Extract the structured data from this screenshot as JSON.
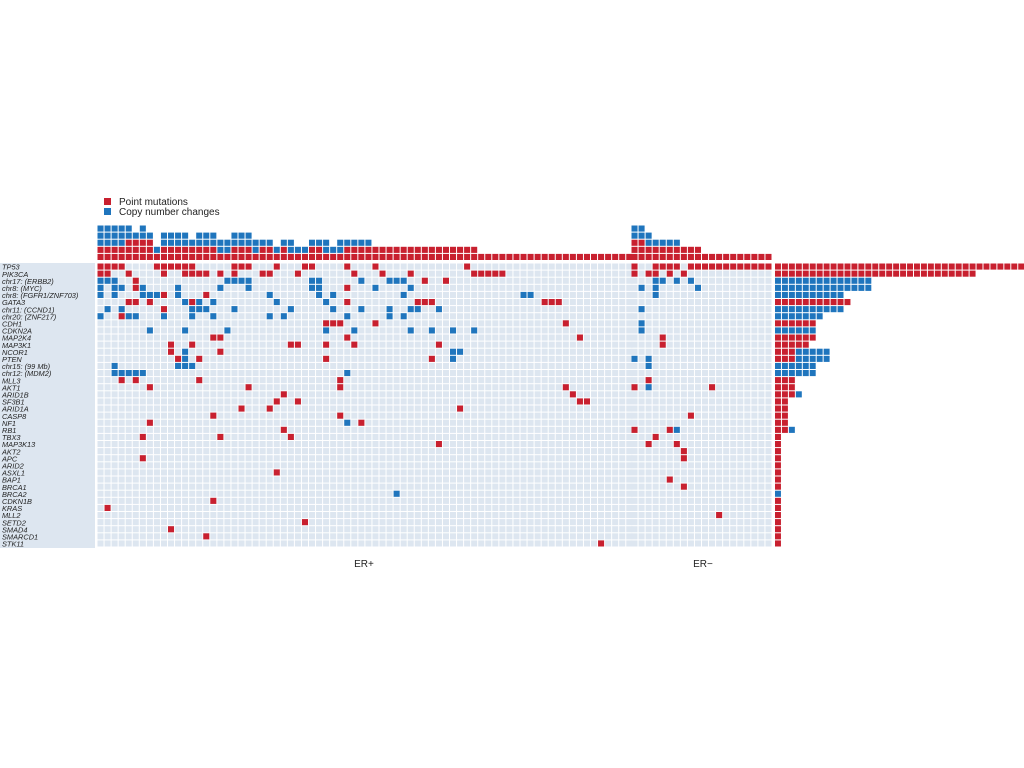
{
  "legend": {
    "items": [
      {
        "label": "Point mutations",
        "color": "#c8202f"
      },
      {
        "label": "Copy number changes",
        "color": "#1f75bd"
      }
    ]
  },
  "colors": {
    "background_cell": "#dde6f0",
    "grid_line": "#ffffff",
    "row_label_band": "#dde6f0",
    "mutation": "#c8202f",
    "copy_number": "#1f75bd",
    "text": "#222222"
  },
  "chart_data": {
    "type": "heatmap",
    "groups": [
      {
        "label": "ER+",
        "n_samples": 76
      },
      {
        "label": "ER−",
        "n_samples": 20
      }
    ],
    "genes": [
      "TP53",
      "PIK3CA",
      "chr17: (ERBB2)",
      "chr8: (MYC)",
      "chr8: (FGFR1/ZNF703)",
      "GATA3",
      "chr11: (CCND1)",
      "chr20: (ZNF217)",
      "CDH1",
      "CDKN2A",
      "MAP2K4",
      "MAP3K1",
      "NCOR1",
      "PTEN",
      "chr15: (99 Mb)",
      "chr12: (MDM2)",
      "MLL3",
      "AKT1",
      "ARID1B",
      "SF3B1",
      "ARID1A",
      "CASP8",
      "NF1",
      "RB1",
      "TBX3",
      "MAP3K13",
      "AKT2",
      "APC",
      "ARID2",
      "ASXL1",
      "BAP1",
      "BRCA1",
      "BRCA2",
      "CDKN1B",
      "KRAS",
      "MLL2",
      "SETD2",
      "SMAD4",
      "SMARCD1",
      "STK11"
    ],
    "gene_totals": {
      "mutations": [
        36,
        29,
        0,
        0,
        0,
        11,
        0,
        0,
        6,
        0,
        6,
        5,
        3,
        3,
        0,
        0,
        3,
        3,
        3,
        2,
        2,
        2,
        2,
        2,
        1,
        1,
        1,
        1,
        1,
        1,
        1,
        1,
        0,
        1,
        1,
        1,
        1,
        1,
        1,
        1
      ],
      "copy_number": [
        0,
        0,
        14,
        14,
        10,
        0,
        10,
        7,
        0,
        6,
        0,
        0,
        5,
        5,
        6,
        6,
        0,
        0,
        1,
        0,
        0,
        0,
        0,
        1,
        0,
        0,
        0,
        0,
        0,
        0,
        0,
        0,
        1,
        0,
        0,
        0,
        0,
        0,
        0,
        0
      ]
    },
    "erpos_events": [
      [
        0,
        "m",
        0
      ],
      [
        0,
        "m",
        1
      ],
      [
        0,
        "m",
        2
      ],
      [
        0,
        "m",
        3
      ],
      [
        0,
        "m",
        8
      ],
      [
        0,
        "m",
        9
      ],
      [
        0,
        "m",
        10
      ],
      [
        0,
        "m",
        11
      ],
      [
        0,
        "m",
        12
      ],
      [
        0,
        "m",
        13
      ],
      [
        0,
        "m",
        19
      ],
      [
        0,
        "m",
        20
      ],
      [
        0,
        "m",
        21
      ],
      [
        0,
        "m",
        25
      ],
      [
        0,
        "m",
        29
      ],
      [
        0,
        "m",
        30
      ],
      [
        0,
        "m",
        35
      ],
      [
        0,
        "m",
        39
      ],
      [
        0,
        "m",
        52
      ],
      [
        1,
        "m",
        0
      ],
      [
        1,
        "m",
        1
      ],
      [
        1,
        "m",
        4
      ],
      [
        1,
        "m",
        9
      ],
      [
        1,
        "m",
        12
      ],
      [
        1,
        "m",
        13
      ],
      [
        1,
        "m",
        14
      ],
      [
        1,
        "m",
        15
      ],
      [
        1,
        "m",
        17
      ],
      [
        1,
        "m",
        19
      ],
      [
        1,
        "m",
        23
      ],
      [
        1,
        "m",
        24
      ],
      [
        1,
        "m",
        28
      ],
      [
        1,
        "m",
        36
      ],
      [
        1,
        "m",
        40
      ],
      [
        1,
        "m",
        44
      ],
      [
        1,
        "m",
        53
      ],
      [
        1,
        "m",
        54
      ],
      [
        1,
        "m",
        55
      ],
      [
        1,
        "m",
        56
      ],
      [
        1,
        "m",
        57
      ],
      [
        2,
        "c",
        0
      ],
      [
        2,
        "c",
        1
      ],
      [
        2,
        "c",
        2
      ],
      [
        2,
        "m",
        5
      ],
      [
        2,
        "c",
        18
      ],
      [
        2,
        "c",
        19
      ],
      [
        2,
        "c",
        20
      ],
      [
        2,
        "c",
        21
      ],
      [
        2,
        "c",
        30
      ],
      [
        2,
        "c",
        31
      ],
      [
        2,
        "c",
        37
      ],
      [
        2,
        "c",
        41
      ],
      [
        2,
        "c",
        42
      ],
      [
        2,
        "c",
        43
      ],
      [
        2,
        "m",
        46
      ],
      [
        2,
        "m",
        49
      ],
      [
        3,
        "c",
        0
      ],
      [
        3,
        "c",
        2
      ],
      [
        3,
        "c",
        3
      ],
      [
        3,
        "m",
        5
      ],
      [
        3,
        "c",
        6
      ],
      [
        3,
        "c",
        11
      ],
      [
        3,
        "c",
        17
      ],
      [
        3,
        "c",
        21
      ],
      [
        3,
        "c",
        30
      ],
      [
        3,
        "c",
        31
      ],
      [
        3,
        "m",
        35
      ],
      [
        3,
        "c",
        39
      ],
      [
        3,
        "c",
        44
      ],
      [
        4,
        "c",
        0
      ],
      [
        4,
        "c",
        2
      ],
      [
        4,
        "c",
        6
      ],
      [
        4,
        "c",
        7
      ],
      [
        4,
        "c",
        8
      ],
      [
        4,
        "m",
        9
      ],
      [
        4,
        "c",
        11
      ],
      [
        4,
        "m",
        15
      ],
      [
        4,
        "c",
        24
      ],
      [
        4,
        "c",
        31
      ],
      [
        4,
        "c",
        33
      ],
      [
        4,
        "c",
        43
      ],
      [
        4,
        "c",
        60
      ],
      [
        4,
        "c",
        61
      ],
      [
        5,
        "m",
        4
      ],
      [
        5,
        "m",
        5
      ],
      [
        5,
        "m",
        7
      ],
      [
        5,
        "c",
        12
      ],
      [
        5,
        "m",
        13
      ],
      [
        5,
        "c",
        14
      ],
      [
        5,
        "c",
        16
      ],
      [
        5,
        "c",
        25
      ],
      [
        5,
        "c",
        32
      ],
      [
        5,
        "m",
        35
      ],
      [
        5,
        "m",
        45
      ],
      [
        5,
        "m",
        46
      ],
      [
        5,
        "m",
        47
      ],
      [
        5,
        "m",
        63
      ],
      [
        5,
        "m",
        64
      ],
      [
        5,
        "m",
        65
      ],
      [
        6,
        "c",
        1
      ],
      [
        6,
        "c",
        3
      ],
      [
        6,
        "m",
        9
      ],
      [
        6,
        "c",
        13
      ],
      [
        6,
        "c",
        14
      ],
      [
        6,
        "c",
        15
      ],
      [
        6,
        "c",
        19
      ],
      [
        6,
        "c",
        27
      ],
      [
        6,
        "c",
        33
      ],
      [
        6,
        "c",
        37
      ],
      [
        6,
        "c",
        41
      ],
      [
        6,
        "c",
        44
      ],
      [
        6,
        "c",
        45
      ],
      [
        6,
        "c",
        48
      ],
      [
        7,
        "c",
        0
      ],
      [
        7,
        "m",
        3
      ],
      [
        7,
        "c",
        4
      ],
      [
        7,
        "c",
        5
      ],
      [
        7,
        "c",
        9
      ],
      [
        7,
        "c",
        13
      ],
      [
        7,
        "c",
        16
      ],
      [
        7,
        "c",
        24
      ],
      [
        7,
        "c",
        26
      ],
      [
        7,
        "c",
        35
      ],
      [
        7,
        "c",
        41
      ],
      [
        7,
        "c",
        43
      ],
      [
        8,
        "m",
        32
      ],
      [
        8,
        "m",
        33
      ],
      [
        8,
        "m",
        34
      ],
      [
        8,
        "m",
        39
      ],
      [
        8,
        "m",
        66
      ],
      [
        9,
        "c",
        7
      ],
      [
        9,
        "c",
        12
      ],
      [
        9,
        "c",
        18
      ],
      [
        9,
        "c",
        32
      ],
      [
        9,
        "c",
        36
      ],
      [
        9,
        "c",
        44
      ],
      [
        9,
        "c",
        47
      ],
      [
        9,
        "c",
        50
      ],
      [
        9,
        "c",
        53
      ],
      [
        10,
        "m",
        16
      ],
      [
        10,
        "m",
        17
      ],
      [
        10,
        "m",
        35
      ],
      [
        10,
        "m",
        68
      ],
      [
        11,
        "m",
        10
      ],
      [
        11,
        "m",
        13
      ],
      [
        11,
        "m",
        27
      ],
      [
        11,
        "m",
        28
      ],
      [
        11,
        "m",
        32
      ],
      [
        11,
        "m",
        36
      ],
      [
        11,
        "m",
        48
      ],
      [
        12,
        "m",
        10
      ],
      [
        12,
        "c",
        12
      ],
      [
        12,
        "m",
        17
      ],
      [
        12,
        "c",
        50
      ],
      [
        12,
        "c",
        51
      ],
      [
        13,
        "c",
        12
      ],
      [
        13,
        "m",
        11
      ],
      [
        13,
        "m",
        14
      ],
      [
        13,
        "m",
        32
      ],
      [
        13,
        "m",
        47
      ],
      [
        13,
        "c",
        50
      ],
      [
        14,
        "c",
        2
      ],
      [
        14,
        "c",
        11
      ],
      [
        14,
        "c",
        12
      ],
      [
        14,
        "c",
        13
      ],
      [
        15,
        "c",
        2
      ],
      [
        15,
        "c",
        3
      ],
      [
        15,
        "c",
        4
      ],
      [
        15,
        "c",
        5
      ],
      [
        15,
        "c",
        6
      ],
      [
        15,
        "c",
        35
      ],
      [
        16,
        "m",
        3
      ],
      [
        16,
        "m",
        5
      ],
      [
        16,
        "m",
        14
      ],
      [
        16,
        "m",
        34
      ],
      [
        17,
        "m",
        7
      ],
      [
        17,
        "m",
        21
      ],
      [
        17,
        "m",
        34
      ],
      [
        17,
        "m",
        66
      ],
      [
        18,
        "m",
        26
      ],
      [
        18,
        "m",
        67
      ],
      [
        19,
        "m",
        25
      ],
      [
        19,
        "m",
        28
      ],
      [
        19,
        "m",
        68
      ],
      [
        19,
        "m",
        69
      ],
      [
        20,
        "m",
        20
      ],
      [
        20,
        "m",
        24
      ],
      [
        20,
        "m",
        51
      ],
      [
        21,
        "m",
        16
      ],
      [
        21,
        "m",
        34
      ],
      [
        22,
        "m",
        7
      ],
      [
        22,
        "c",
        35
      ],
      [
        22,
        "m",
        37
      ],
      [
        23,
        "m",
        26
      ],
      [
        24,
        "m",
        6
      ],
      [
        24,
        "m",
        17
      ],
      [
        24,
        "m",
        27
      ],
      [
        25,
        "m",
        48
      ],
      [
        27,
        "m",
        6
      ],
      [
        29,
        "m",
        25
      ],
      [
        32,
        "c",
        42
      ],
      [
        33,
        "m",
        16
      ],
      [
        34,
        "m",
        1
      ],
      [
        36,
        "m",
        29
      ],
      [
        37,
        "m",
        10
      ],
      [
        38,
        "m",
        15
      ],
      [
        39,
        "m",
        71
      ]
    ],
    "erneg_events": [
      [
        0,
        "m",
        0
      ],
      [
        0,
        "m",
        3
      ],
      [
        0,
        "m",
        4
      ],
      [
        0,
        "m",
        5
      ],
      [
        0,
        "m",
        6
      ],
      [
        0,
        "m",
        8
      ],
      [
        0,
        "m",
        9
      ],
      [
        0,
        "m",
        10
      ],
      [
        0,
        "m",
        11
      ],
      [
        0,
        "m",
        12
      ],
      [
        0,
        "m",
        13
      ],
      [
        0,
        "m",
        14
      ],
      [
        0,
        "m",
        15
      ],
      [
        0,
        "m",
        16
      ],
      [
        0,
        "m",
        17
      ],
      [
        0,
        "m",
        18
      ],
      [
        0,
        "m",
        19
      ],
      [
        1,
        "m",
        0
      ],
      [
        1,
        "m",
        2
      ],
      [
        1,
        "m",
        3
      ],
      [
        1,
        "m",
        5
      ],
      [
        1,
        "m",
        7
      ],
      [
        2,
        "c",
        3
      ],
      [
        2,
        "c",
        4
      ],
      [
        2,
        "c",
        6
      ],
      [
        2,
        "c",
        8
      ],
      [
        3,
        "c",
        1
      ],
      [
        3,
        "c",
        3
      ],
      [
        3,
        "c",
        9
      ],
      [
        4,
        "c",
        3
      ],
      [
        6,
        "c",
        1
      ],
      [
        8,
        "c",
        1
      ],
      [
        9,
        "c",
        1
      ],
      [
        11,
        "m",
        4
      ],
      [
        13,
        "c",
        0
      ],
      [
        13,
        "c",
        2
      ],
      [
        14,
        "c",
        2
      ],
      [
        16,
        "m",
        2
      ],
      [
        17,
        "m",
        0
      ],
      [
        17,
        "c",
        2
      ],
      [
        17,
        "m",
        11
      ],
      [
        23,
        "m",
        0
      ],
      [
        23,
        "m",
        5
      ],
      [
        23,
        "c",
        6
      ],
      [
        24,
        "m",
        3
      ],
      [
        25,
        "m",
        2
      ],
      [
        25,
        "m",
        6
      ],
      [
        26,
        "m",
        7
      ],
      [
        27,
        "m",
        7
      ],
      [
        30,
        "m",
        5
      ],
      [
        31,
        "m",
        7
      ],
      [
        35,
        "m",
        12
      ],
      [
        21,
        "m",
        8
      ],
      [
        10,
        "m",
        4
      ]
    ],
    "top_bar_columns_erpos": [
      [
        3,
        2
      ],
      [
        3,
        2
      ],
      [
        3,
        2
      ],
      [
        3,
        2
      ],
      [
        2,
        3
      ],
      [
        1,
        3
      ],
      [
        2,
        3
      ],
      [
        1,
        3
      ],
      [
        1,
        1
      ],
      [
        2,
        2
      ],
      [
        2,
        2
      ],
      [
        2,
        2
      ],
      [
        2,
        2
      ],
      [
        1,
        2
      ],
      [
        2,
        2
      ],
      [
        2,
        2
      ],
      [
        2,
        2
      ],
      [
        2,
        1
      ],
      [
        2,
        1
      ],
      [
        2,
        2
      ],
      [
        2,
        2
      ],
      [
        2,
        2
      ],
      [
        2,
        1
      ],
      [
        1,
        2
      ],
      [
        1,
        2
      ],
      [
        1,
        1
      ],
      [
        1,
        2
      ],
      [
        2,
        1
      ],
      [
        1,
        1
      ],
      [
        1,
        1
      ],
      [
        1,
        2
      ],
      [
        1,
        2
      ],
      [
        2,
        1
      ],
      [
        1,
        1
      ],
      [
        2,
        1
      ],
      [
        1,
        2
      ],
      [
        1,
        2
      ],
      [
        1,
        2
      ],
      [
        1,
        2
      ],
      [
        0,
        2
      ],
      [
        0,
        2
      ],
      [
        0,
        2
      ],
      [
        0,
        2
      ],
      [
        0,
        2
      ],
      [
        0,
        2
      ],
      [
        0,
        2
      ],
      [
        0,
        2
      ],
      [
        0,
        2
      ],
      [
        0,
        2
      ],
      [
        0,
        2
      ],
      [
        0,
        2
      ],
      [
        0,
        2
      ],
      [
        0,
        2
      ],
      [
        0,
        2
      ],
      [
        0,
        1
      ],
      [
        0,
        1
      ],
      [
        0,
        1
      ],
      [
        0,
        1
      ],
      [
        0,
        1
      ],
      [
        0,
        1
      ],
      [
        0,
        1
      ],
      [
        0,
        1
      ],
      [
        0,
        1
      ],
      [
        0,
        1
      ],
      [
        0,
        1
      ],
      [
        0,
        1
      ],
      [
        0,
        1
      ],
      [
        0,
        1
      ],
      [
        0,
        1
      ],
      [
        0,
        1
      ],
      [
        0,
        1
      ],
      [
        0,
        1
      ],
      [
        0,
        1
      ],
      [
        0,
        1
      ],
      [
        0,
        1
      ],
      [
        0,
        1
      ]
    ],
    "top_bar_columns_erneg": [
      [
        2,
        3
      ],
      [
        2,
        3
      ],
      [
        2,
        2
      ],
      [
        1,
        2
      ],
      [
        1,
        2
      ],
      [
        1,
        2
      ],
      [
        1,
        2
      ],
      [
        0,
        2
      ],
      [
        0,
        2
      ],
      [
        0,
        2
      ],
      [
        0,
        1
      ],
      [
        0,
        1
      ],
      [
        0,
        1
      ],
      [
        0,
        1
      ],
      [
        0,
        1
      ],
      [
        0,
        1
      ],
      [
        0,
        1
      ],
      [
        0,
        1
      ],
      [
        0,
        1
      ],
      [
        0,
        1
      ]
    ]
  }
}
